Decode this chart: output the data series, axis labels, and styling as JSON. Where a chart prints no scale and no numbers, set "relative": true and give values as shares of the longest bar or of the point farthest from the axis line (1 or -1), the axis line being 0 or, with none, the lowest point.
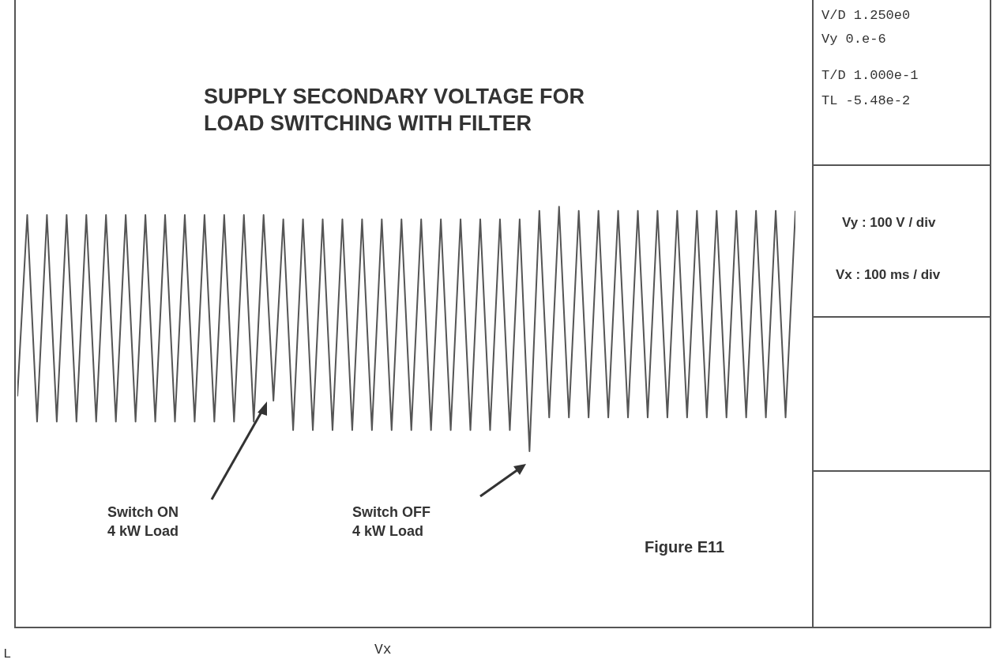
{
  "chart_data": {
    "type": "line",
    "title": "SUPPLY SECONDARY VOLTAGE FOR\nLOAD SWITCHING WITH FILTER",
    "xlabel": "Vx",
    "relative": true,
    "grid": false,
    "legend": false,
    "marker": "none",
    "line_style": "solid",
    "categories": [
      null,
      null,
      null,
      null,
      null,
      null,
      null,
      null,
      null,
      null,
      null,
      null,
      null,
      null,
      null,
      null,
      null,
      null,
      null,
      null,
      null,
      null,
      null,
      null,
      null,
      null,
      null,
      null,
      null,
      null,
      null,
      null,
      null,
      null,
      null,
      null,
      null,
      null,
      null,
      null,
      null,
      null,
      null,
      null,
      null,
      null,
      null,
      null,
      null,
      null,
      null,
      null,
      null,
      null,
      null,
      null,
      null,
      null,
      null,
      null,
      null,
      null,
      null,
      null,
      null,
      null,
      null,
      null,
      null,
      null,
      null,
      null,
      null,
      null,
      null,
      null,
      null,
      null,
      null,
      null
    ],
    "series": [
      {
        "color": "#555555",
        "values": [
          0.55,
          0.98,
          0.49,
          0.98,
          0.49,
          0.98,
          0.49,
          0.98,
          0.49,
          0.98,
          0.49,
          0.98,
          0.49,
          0.98,
          0.49,
          0.98,
          0.49,
          0.98,
          0.49,
          0.98,
          0.49,
          0.98,
          0.49,
          0.98,
          0.49,
          0.98,
          0.54,
          0.97,
          0.47,
          0.97,
          0.47,
          0.97,
          0.47,
          0.97,
          0.47,
          0.97,
          0.47,
          0.97,
          0.47,
          0.97,
          0.47,
          0.97,
          0.47,
          0.97,
          0.47,
          0.97,
          0.47,
          0.97,
          0.47,
          0.97,
          0.47,
          0.97,
          0.42,
          0.99,
          0.5,
          1,
          0.5,
          0.99,
          0.5,
          0.99,
          0.5,
          0.99,
          0.5,
          0.99,
          0.5,
          0.99,
          0.5,
          0.99,
          0.5,
          0.99,
          0.5,
          0.99,
          0.5,
          0.99,
          0.5,
          0.99,
          0.5,
          0.99,
          0.5,
          0.99
        ]
      }
    ],
    "annotations": [
      "V/D 1.250e0",
      "Vy  0.e-6",
      "T/D 1.000e-1",
      "TL -5.48e-2",
      "Vy : 100 V / div",
      "Vx : 100 ms / div",
      "Switch ON\n4 kW Load",
      "Switch OFF\n4 kW Load",
      "Figure E11",
      "L"
    ]
  }
}
